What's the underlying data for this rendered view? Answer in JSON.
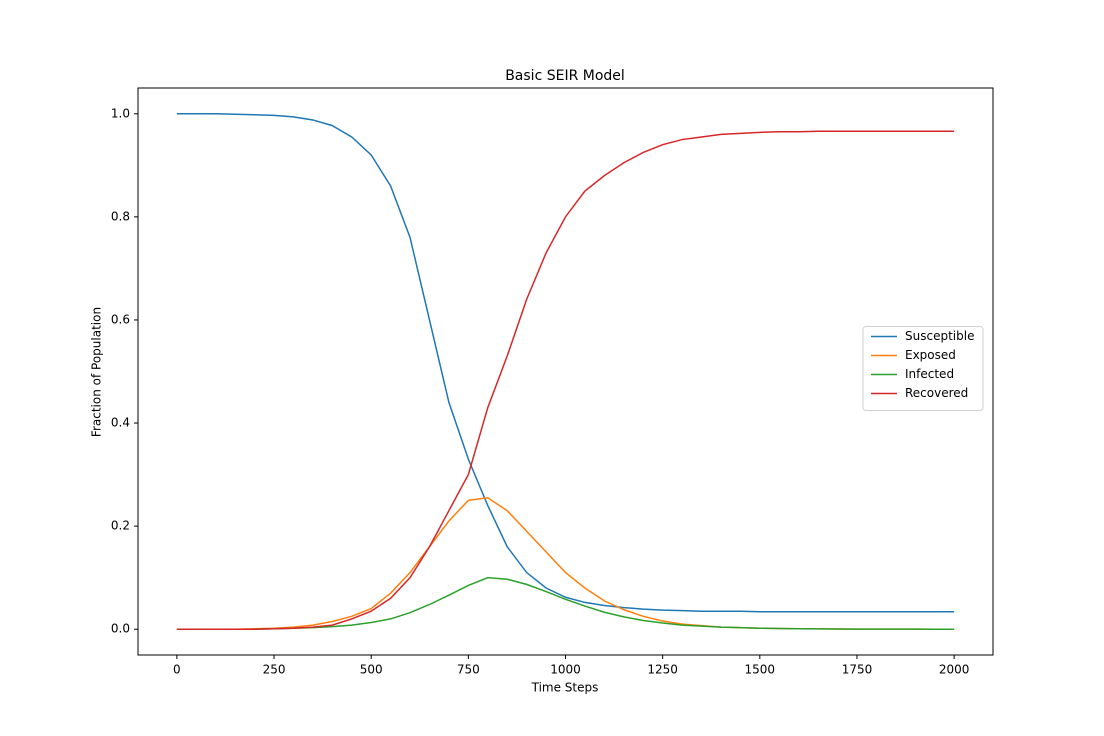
{
  "chart_data": {
    "type": "line",
    "title": "Basic SEIR Model",
    "x_label": "Time Steps",
    "y_label": "Fraction of Population",
    "x": [
      0,
      50,
      100,
      150,
      200,
      250,
      300,
      350,
      400,
      450,
      500,
      550,
      600,
      650,
      700,
      750,
      800,
      850,
      900,
      950,
      1000,
      1050,
      1100,
      1150,
      1200,
      1250,
      1300,
      1350,
      1400,
      1450,
      1500,
      1550,
      1600,
      1650,
      1700,
      1750,
      1800,
      1850,
      1900,
      1950,
      2000
    ],
    "series": [
      {
        "name": "Susceptible",
        "color": "#1f77b4",
        "values": [
          1.0,
          1.0,
          1.0,
          0.999,
          0.998,
          0.997,
          0.994,
          0.988,
          0.977,
          0.955,
          0.92,
          0.86,
          0.76,
          0.6,
          0.44,
          0.33,
          0.24,
          0.16,
          0.11,
          0.08,
          0.062,
          0.052,
          0.046,
          0.042,
          0.039,
          0.037,
          0.036,
          0.035,
          0.035,
          0.035,
          0.034,
          0.034,
          0.034,
          0.034,
          0.034,
          0.034,
          0.034,
          0.034,
          0.034,
          0.034,
          0.034
        ]
      },
      {
        "name": "Exposed",
        "color": "#ff7f0e",
        "values": [
          0,
          0,
          0,
          0,
          0.001,
          0.002,
          0.004,
          0.008,
          0.015,
          0.025,
          0.04,
          0.07,
          0.11,
          0.16,
          0.21,
          0.25,
          0.255,
          0.23,
          0.19,
          0.15,
          0.11,
          0.08,
          0.055,
          0.038,
          0.025,
          0.016,
          0.01,
          0.007,
          0.004,
          0.003,
          0.002,
          0.0015,
          0.001,
          0.0008,
          0.0005,
          0.0003,
          0.0002,
          0.0001,
          0.0001,
          0,
          0
        ]
      },
      {
        "name": "Infected",
        "color": "#2ca02c",
        "values": [
          0,
          0,
          0,
          0,
          0,
          0.001,
          0.002,
          0.003,
          0.005,
          0.008,
          0.013,
          0.02,
          0.032,
          0.048,
          0.066,
          0.085,
          0.1,
          0.097,
          0.087,
          0.073,
          0.058,
          0.045,
          0.033,
          0.024,
          0.017,
          0.012,
          0.008,
          0.006,
          0.004,
          0.003,
          0.002,
          0.0015,
          0.001,
          0.0007,
          0.0005,
          0.0003,
          0.0002,
          0.0001,
          0.0001,
          0,
          0
        ]
      },
      {
        "name": "Recovered",
        "color": "#d62728",
        "values": [
          0,
          0,
          0,
          0,
          0,
          0.001,
          0.002,
          0.004,
          0.008,
          0.02,
          0.035,
          0.06,
          0.1,
          0.16,
          0.23,
          0.3,
          0.43,
          0.53,
          0.64,
          0.73,
          0.8,
          0.85,
          0.88,
          0.905,
          0.925,
          0.94,
          0.95,
          0.955,
          0.96,
          0.962,
          0.964,
          0.965,
          0.965,
          0.966,
          0.966,
          0.966,
          0.966,
          0.966,
          0.966,
          0.966,
          0.966
        ]
      }
    ],
    "xlim": [
      -100,
      2100
    ],
    "xticks": [
      0,
      250,
      500,
      750,
      1000,
      1250,
      1500,
      1750,
      2000
    ],
    "ylim": [
      -0.05,
      1.05
    ],
    "yticks": [
      {
        "value": 0,
        "label": "0.0"
      },
      {
        "value": 0.2,
        "label": "0.2"
      },
      {
        "value": 0.4,
        "label": "0.4"
      },
      {
        "value": 0.6,
        "label": "0.6"
      },
      {
        "value": 0.8,
        "label": "0.8"
      },
      {
        "value": 1.0,
        "label": "1.0"
      }
    ],
    "grid": false,
    "legend": "center right"
  }
}
